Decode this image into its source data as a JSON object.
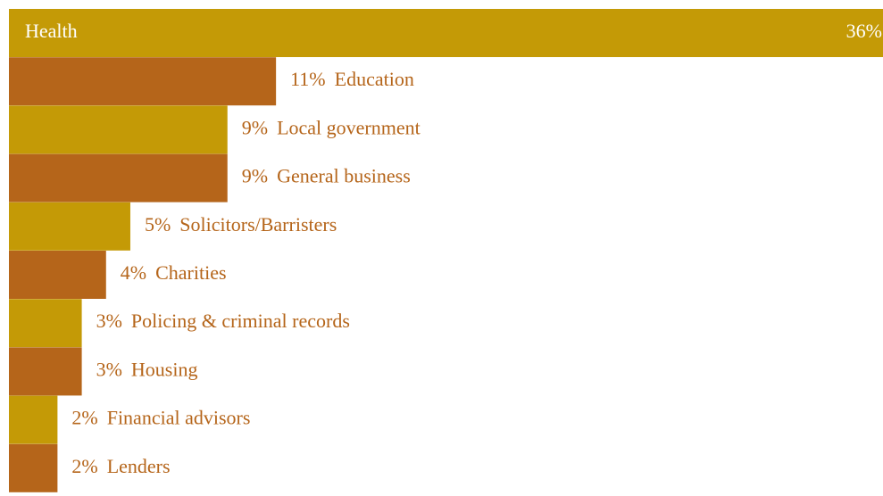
{
  "chart_data": {
    "type": "bar",
    "orientation": "horizontal",
    "categories": [
      "Health",
      "Education",
      "Local government",
      "General business",
      "Solicitors/Barristers",
      "Charities",
      "Policing & criminal records",
      "Housing",
      "Financial advisors",
      "Lenders"
    ],
    "values": [
      36,
      11,
      9,
      9,
      5,
      4,
      3,
      3,
      2,
      2
    ],
    "value_labels": [
      "36%",
      "11%",
      "9%",
      "9%",
      "5%",
      "4%",
      "3%",
      "3%",
      "2%",
      "2%"
    ],
    "colors": [
      "#c49a06",
      "#b5651a",
      "#c49a06",
      "#b5651a",
      "#c49a06",
      "#b5651a",
      "#c49a06",
      "#b5651a",
      "#c49a06",
      "#b5651a"
    ],
    "label_color": "#b5651a",
    "xlim": [
      0,
      36
    ]
  }
}
